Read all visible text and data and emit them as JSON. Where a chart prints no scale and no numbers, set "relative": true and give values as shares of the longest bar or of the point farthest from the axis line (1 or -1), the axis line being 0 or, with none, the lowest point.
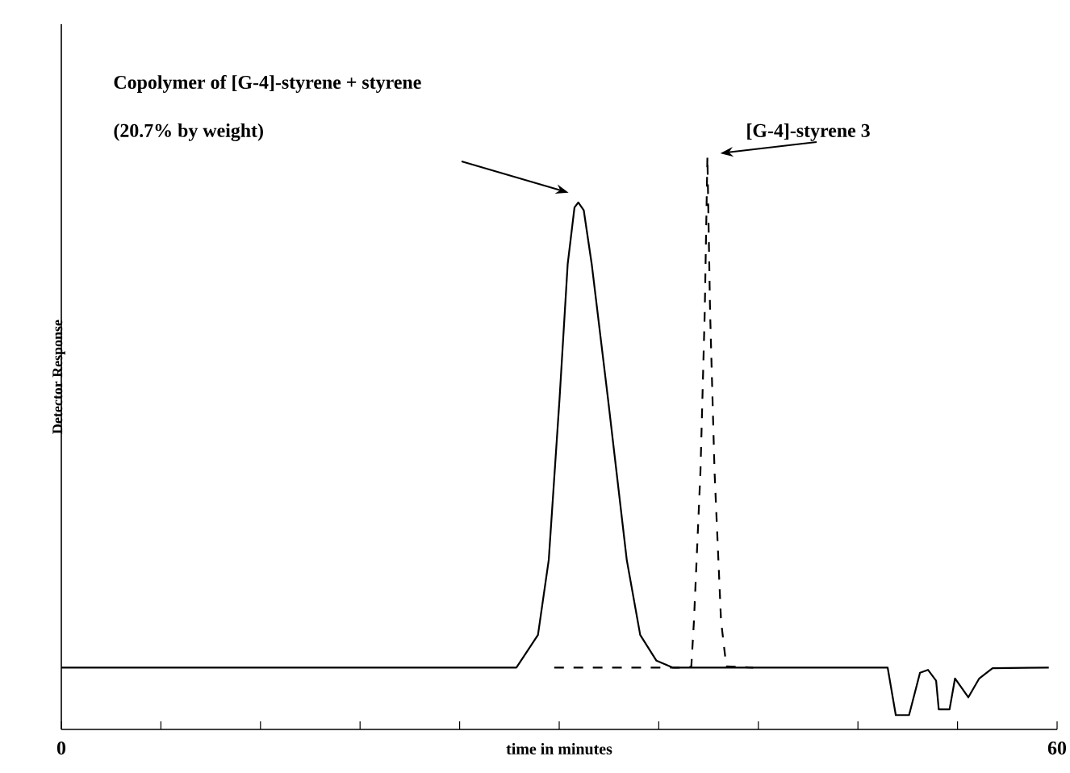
{
  "chart_data": {
    "type": "line",
    "relative": true,
    "xlabel": "time in minutes",
    "ylabel": "Detector Response",
    "xlim": [
      0,
      60
    ],
    "xticks": [
      0,
      {
        "value": 6,
        "label": null
      },
      {
        "value": 12,
        "label": null
      },
      {
        "value": 18,
        "label": null
      },
      {
        "value": 24,
        "label": null
      },
      {
        "value": 30,
        "label": null
      },
      {
        "value": 36,
        "label": null
      },
      {
        "value": 42,
        "label": null
      },
      {
        "value": 48,
        "label": null
      },
      {
        "value": 54,
        "label": null
      },
      60
    ],
    "tick_labels": "x",
    "grid": false,
    "marker": "none",
    "series": [
      {
        "color": "#000000",
        "line_style": "solid",
        "x": [
          0,
          27.42,
          28.72,
          29.37,
          30.02,
          30.51,
          30.92,
          31.15,
          31.48,
          31.96,
          32.94,
          34.07,
          34.88,
          35.86,
          36.83,
          40.5,
          49.79,
          50.28,
          51.08,
          51.74,
          52.22,
          52.71,
          52.87,
          53.52,
          53.85,
          54.65,
          55.31,
          56.11,
          59.5
        ],
        "values": [
          0.108,
          0.108,
          0.165,
          0.296,
          0.577,
          0.812,
          0.911,
          0.92,
          0.906,
          0.812,
          0.577,
          0.296,
          0.165,
          0.12,
          0.108,
          0.108,
          0.108,
          0.025,
          0.025,
          0.099,
          0.104,
          0.085,
          0.035,
          0.035,
          0.089,
          0.056,
          0.089,
          0.107,
          0.108
        ]
      },
      {
        "color": "#000000",
        "line_style": "dashed",
        "x": [
          29.7,
          37.8,
          37.96,
          38.12,
          38.51,
          38.77,
          38.93,
          39.09,
          39.36,
          39.75,
          40.07,
          41.69
        ],
        "values": [
          0.108,
          0.108,
          0.11,
          0.19,
          0.45,
          0.73,
          1.0,
          0.73,
          0.45,
          0.19,
          0.11,
          0.108
        ]
      }
    ],
    "annotations": [
      "Copolymer of [G-4]-styrene + styrene",
      "(20.7% by weight)",
      "[G-4]-styrene 3"
    ]
  }
}
